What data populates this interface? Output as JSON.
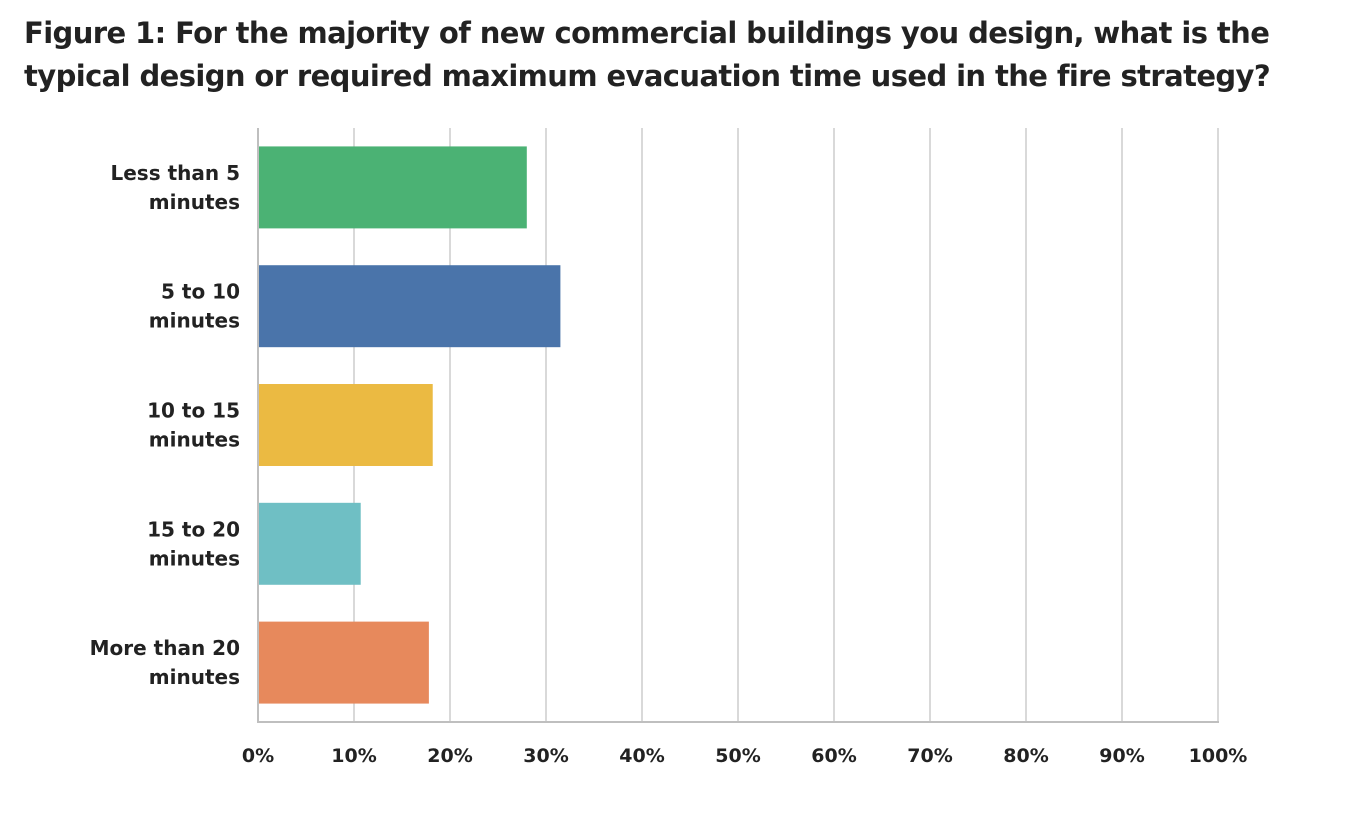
{
  "chart_data": {
    "type": "bar",
    "orientation": "horizontal",
    "title_lines": [
      "Figure 1: For the majority of new commercial buildings you design, what is the",
      "typical design or required maximum evacuation time used in the fire strategy?"
    ],
    "categories": [
      [
        "Less than 5",
        "minutes"
      ],
      [
        "5 to 10",
        "minutes"
      ],
      [
        "10 to 15",
        "minutes"
      ],
      [
        "15 to 20",
        "minutes"
      ],
      [
        "More than 20",
        "minutes"
      ]
    ],
    "values": [
      28,
      31.5,
      18.2,
      10.7,
      17.8
    ],
    "colors": [
      "#4bb274",
      "#4a74aa",
      "#ebba42",
      "#6fbfc4",
      "#e7895c"
    ],
    "xlim": [
      0,
      100
    ],
    "xticks": [
      0,
      10,
      20,
      30,
      40,
      50,
      60,
      70,
      80,
      90,
      100
    ],
    "tick_labels": [
      "0%",
      "10%",
      "20%",
      "30%",
      "40%",
      "50%",
      "60%",
      "70%",
      "80%",
      "90%",
      "100%"
    ],
    "xlabel": "",
    "ylabel": "",
    "grid": true,
    "grid_color": "#d9d9d9",
    "axis_color": "#bfbfbf"
  }
}
